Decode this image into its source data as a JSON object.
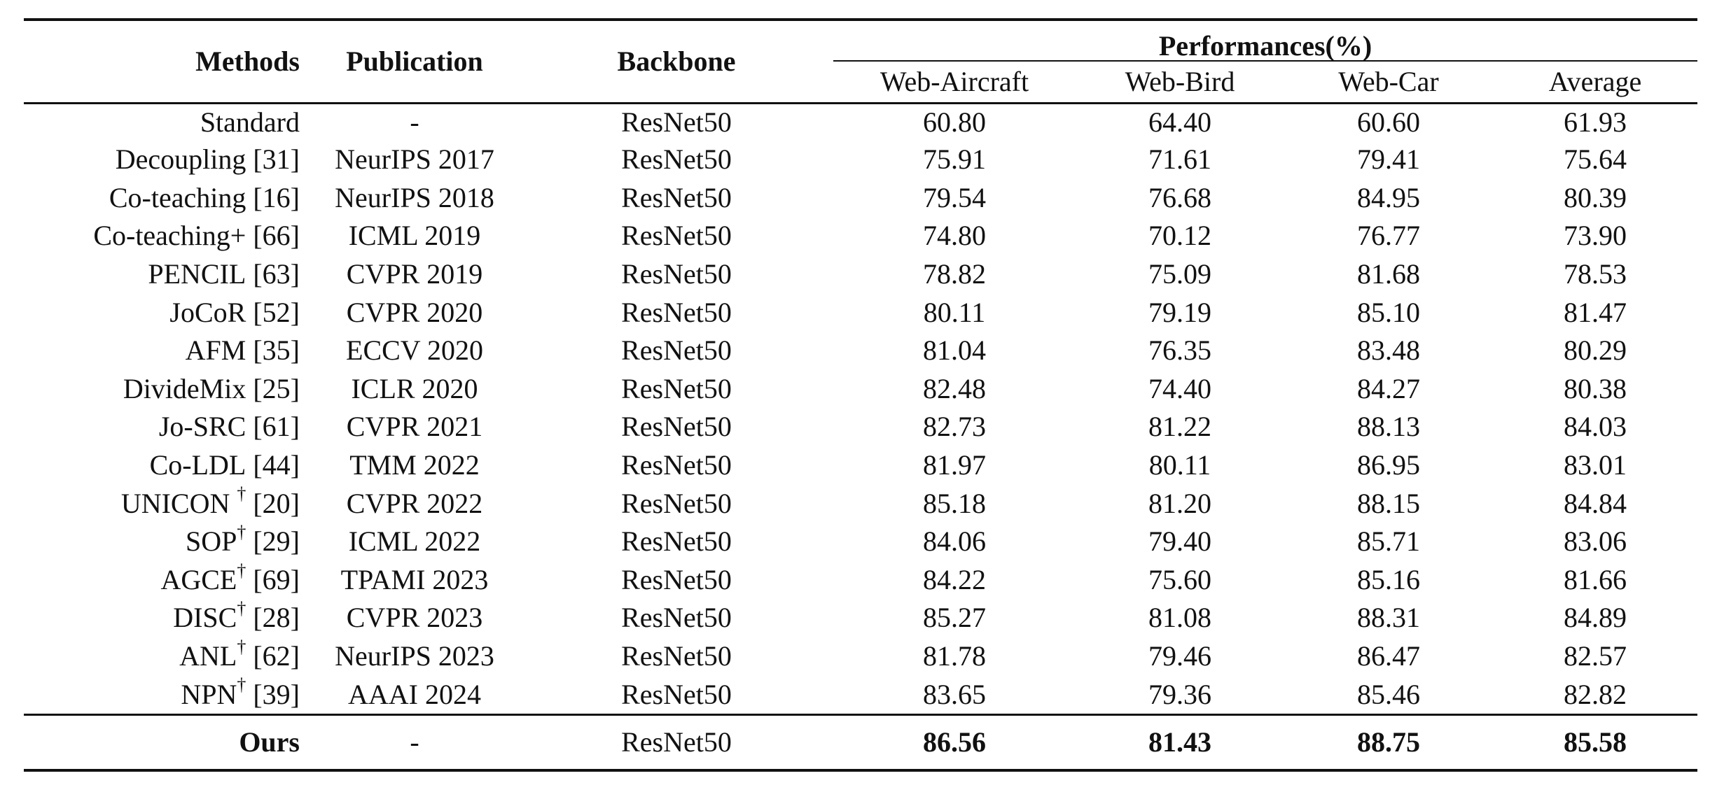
{
  "headers": {
    "methods": "Methods",
    "publication": "Publication",
    "backbone": "Backbone",
    "performances": "Performances(%)",
    "web_aircraft": "Web-Aircraft",
    "web_bird": "Web-Bird",
    "web_car": "Web-Car",
    "average": "Average"
  },
  "rows": [
    {
      "method": "Standard",
      "dagger": "",
      "ref": "",
      "pub": "-",
      "backbone": "ResNet50",
      "air": "60.80",
      "bird": "64.40",
      "car": "60.60",
      "avg": "61.93"
    },
    {
      "method": "Decoupling",
      "dagger": "",
      "ref": "[31]",
      "pub": "NeurIPS 2017",
      "backbone": "ResNet50",
      "air": "75.91",
      "bird": "71.61",
      "car": "79.41",
      "avg": "75.64"
    },
    {
      "method": "Co-teaching",
      "dagger": "",
      "ref": "[16]",
      "pub": "NeurIPS 2018",
      "backbone": "ResNet50",
      "air": "79.54",
      "bird": "76.68",
      "car": "84.95",
      "avg": "80.39"
    },
    {
      "method": "Co-teaching+",
      "dagger": "",
      "ref": "[66]",
      "pub": "ICML 2019",
      "backbone": "ResNet50",
      "air": "74.80",
      "bird": "70.12",
      "car": "76.77",
      "avg": "73.90"
    },
    {
      "method": "PENCIL",
      "dagger": "",
      "ref": "[63]",
      "pub": "CVPR 2019",
      "backbone": "ResNet50",
      "air": "78.82",
      "bird": "75.09",
      "car": "81.68",
      "avg": "78.53"
    },
    {
      "method": "JoCoR",
      "dagger": "",
      "ref": "[52]",
      "pub": "CVPR 2020",
      "backbone": "ResNet50",
      "air": "80.11",
      "bird": "79.19",
      "car": "85.10",
      "avg": "81.47"
    },
    {
      "method": "AFM",
      "dagger": "",
      "ref": "[35]",
      "pub": "ECCV 2020",
      "backbone": "ResNet50",
      "air": "81.04",
      "bird": "76.35",
      "car": "83.48",
      "avg": "80.29"
    },
    {
      "method": "DivideMix",
      "dagger": "",
      "ref": "[25]",
      "pub": "ICLR 2020",
      "backbone": "ResNet50",
      "air": "82.48",
      "bird": "74.40",
      "car": "84.27",
      "avg": "80.38"
    },
    {
      "method": "Jo-SRC",
      "dagger": "",
      "ref": "[61]",
      "pub": "CVPR 2021",
      "backbone": "ResNet50",
      "air": "82.73",
      "bird": "81.22",
      "car": "88.13",
      "avg": "84.03"
    },
    {
      "method": "Co-LDL",
      "dagger": "",
      "ref": "[44]",
      "pub": "TMM 2022",
      "backbone": "ResNet50",
      "air": "81.97",
      "bird": "80.11",
      "car": "86.95",
      "avg": "83.01"
    },
    {
      "method": "UNICON ",
      "dagger": "†",
      "ref": "[20]",
      "pub": "CVPR 2022",
      "backbone": "ResNet50",
      "air": "85.18",
      "bird": "81.20",
      "car": "88.15",
      "avg": "84.84"
    },
    {
      "method": "SOP",
      "dagger": "†",
      "ref": "[29]",
      "pub": "ICML 2022",
      "backbone": "ResNet50",
      "air": "84.06",
      "bird": "79.40",
      "car": "85.71",
      "avg": "83.06"
    },
    {
      "method": "AGCE",
      "dagger": "†",
      "ref": "[69]",
      "pub": "TPAMI 2023",
      "backbone": "ResNet50",
      "air": "84.22",
      "bird": "75.60",
      "car": "85.16",
      "avg": "81.66"
    },
    {
      "method": "DISC",
      "dagger": "†",
      "ref": "[28]",
      "pub": "CVPR 2023",
      "backbone": "ResNet50",
      "air": "85.27",
      "bird": "81.08",
      "car": "88.31",
      "avg": "84.89"
    },
    {
      "method": "ANL",
      "dagger": "†",
      "ref": "[62]",
      "pub": "NeurIPS 2023",
      "backbone": "ResNet50",
      "air": "81.78",
      "bird": "79.46",
      "car": "86.47",
      "avg": "82.57"
    },
    {
      "method": "NPN",
      "dagger": "†",
      "ref": "[39]",
      "pub": "AAAI 2024",
      "backbone": "ResNet50",
      "air": "83.65",
      "bird": "79.36",
      "car": "85.46",
      "avg": "82.82"
    }
  ],
  "ours": {
    "method": "Ours",
    "pub": "-",
    "backbone": "ResNet50",
    "air": "86.56",
    "bird": "81.43",
    "car": "88.75",
    "avg": "85.58"
  }
}
